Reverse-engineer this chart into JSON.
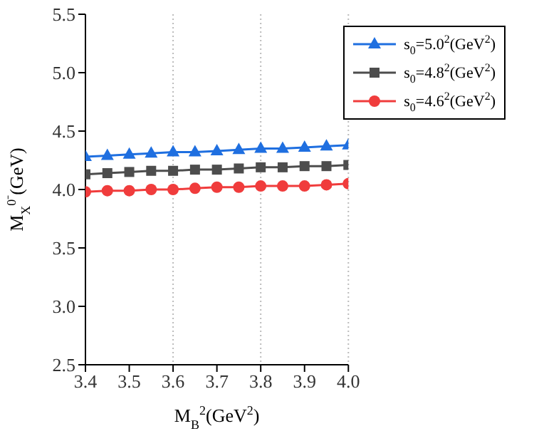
{
  "chart_data": {
    "type": "line",
    "xlabel": "M$_{B}$$^{2}$(GeV$^{2}$)",
    "ylabel": "M$_{X}$$^{0⁻}$(GeV)",
    "x": [
      3.4,
      3.45,
      3.5,
      3.55,
      3.6,
      3.65,
      3.7,
      3.75,
      3.8,
      3.85,
      3.9,
      3.95,
      4.0
    ],
    "series": [
      {
        "name": "s$_{0}$=5.0$^{2}$(GeV$^{2}$)",
        "color": "#1f6fe0",
        "marker": "triangle",
        "values": [
          4.28,
          4.29,
          4.3,
          4.31,
          4.32,
          4.32,
          4.33,
          4.34,
          4.35,
          4.35,
          4.36,
          4.37,
          4.38
        ]
      },
      {
        "name": "s$_{0}$=4.8$^{2}$(GeV$^{2}$)",
        "color": "#4d4d4d",
        "marker": "square",
        "values": [
          4.13,
          4.14,
          4.15,
          4.16,
          4.16,
          4.17,
          4.17,
          4.18,
          4.19,
          4.19,
          4.2,
          4.2,
          4.21
        ]
      },
      {
        "name": "s$_{0}$=4.6$^{2}$(GeV$^{2}$)",
        "color": "#f03c3c",
        "marker": "circle",
        "values": [
          3.98,
          3.99,
          3.99,
          4.0,
          4.0,
          4.01,
          4.02,
          4.02,
          4.03,
          4.03,
          4.03,
          4.04,
          4.05
        ]
      }
    ],
    "xlim": [
      3.4,
      4.0
    ],
    "xticks": [
      3.4,
      3.5,
      3.6,
      3.7,
      3.8,
      3.9,
      {
        "value": 4.0,
        "label": "4.0"
      }
    ],
    "ylim": [
      2.5,
      5.5
    ],
    "yticks": [
      2.5,
      {
        "value": 3.0,
        "label": "3.0"
      },
      3.5,
      {
        "value": 4.0,
        "label": "4.0"
      },
      4.5,
      {
        "value": 5.0,
        "label": "5.0"
      },
      5.5
    ],
    "grid": "x",
    "legend": "top right"
  }
}
